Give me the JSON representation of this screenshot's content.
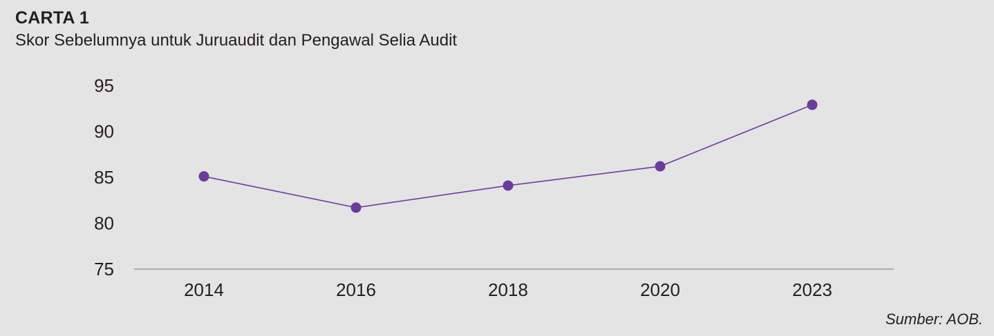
{
  "header": {
    "label": "CARTA 1",
    "title": "Skor Sebelumnya untuk Juruaudit dan Pengawal Selia Audit"
  },
  "footer": {
    "source": "Sumber: AOB."
  },
  "colors": {
    "line": "#6a3d9a",
    "axis": "#9a9a9a",
    "background": "#e4e4e4"
  },
  "chart_data": {
    "type": "line",
    "title": "Skor Sebelumnya untuk Juruaudit dan Pengawal Selia Audit",
    "categories": [
      "2014",
      "2016",
      "2018",
      "2020",
      "2023"
    ],
    "series": [
      {
        "values": [
          85.1,
          81.7,
          84.1,
          86.2,
          92.9
        ]
      }
    ],
    "ylim": [
      75,
      95
    ],
    "yticks": [
      95,
      90,
      85,
      80,
      75
    ],
    "grid": false,
    "legend": "none"
  }
}
